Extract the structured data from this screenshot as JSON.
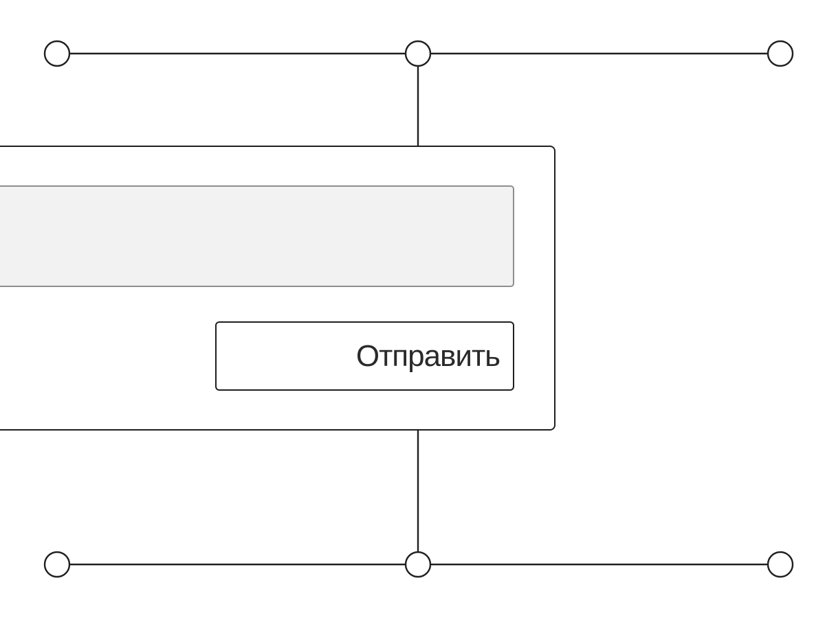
{
  "form": {
    "message_value": "",
    "send_label": "Отправить"
  }
}
